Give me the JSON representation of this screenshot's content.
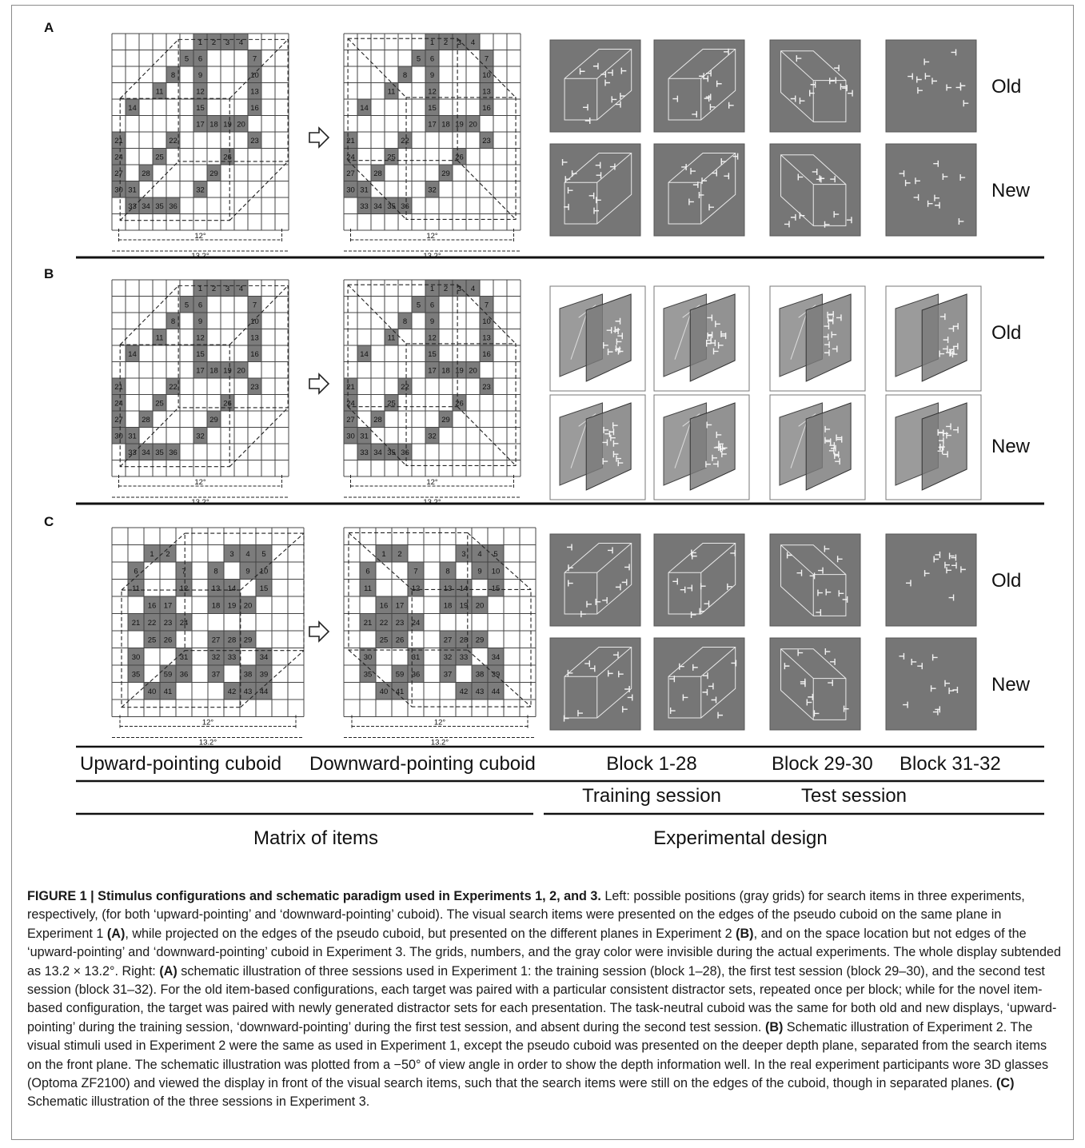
{
  "panels": [
    {
      "letter": "A",
      "exp": 1,
      "depth": false
    },
    {
      "letter": "B",
      "exp": 2,
      "depth": true
    },
    {
      "letter": "C",
      "exp": 3,
      "depth": false
    }
  ],
  "row_labels": [
    "Old",
    "New"
  ],
  "dim_inner": "12°",
  "dim_outer": "13.2°",
  "grid_numbers_exp12": [
    "1",
    "2",
    "3",
    "4",
    "5",
    "6",
    "7",
    "8",
    "9",
    "10",
    "11",
    "12",
    "13",
    "14",
    "15",
    "16",
    "17",
    "18",
    "19",
    "20",
    "21",
    "22",
    "23",
    "24",
    "25",
    "26",
    "27",
    "28",
    "29",
    "30",
    "31",
    "32",
    "33",
    "34",
    "35",
    "36"
  ],
  "grid_numbers_exp3": [
    "1",
    "2",
    "3",
    "4",
    "5",
    "6",
    "7",
    "8",
    "9",
    "10",
    "11",
    "12",
    "13",
    "14",
    "15",
    "16",
    "17",
    "18",
    "19",
    "20",
    "21",
    "22",
    "23",
    "24",
    "25",
    "26",
    "27",
    "28",
    "29",
    "30",
    "31",
    "32",
    "33",
    "34",
    "35",
    "36",
    "37",
    "38",
    "39",
    "40",
    "41",
    "42",
    "43",
    "44",
    "59"
  ],
  "bottom": {
    "col_up": "Upward-pointing cuboid",
    "col_down": "Downward-pointing cuboid",
    "block_train": "Block 1-28",
    "block_test1": "Block 29-30",
    "block_test2": "Block 31-32",
    "training": "Training session",
    "test": "Test session",
    "matrix": "Matrix of items",
    "design": "Experimental design"
  },
  "caption": {
    "title": "FIGURE 1 | Stimulus configurations and schematic paradigm used in Experiments 1, 2, and 3.",
    "t1": " Left: possible positions (gray grids) for search items in three experiments, respectively, (for both ‘upward-pointing’ and ‘downward-pointing’ cuboid). The visual search items were presented on the edges of the pseudo cuboid on the same plane in Experiment 1 ",
    "a1": "(A)",
    "t2": ", while projected on the edges of the pseudo cuboid, but presented on the different planes in Experiment 2 ",
    "b1": "(B)",
    "t3": ", and on the space location but not edges of the ‘upward-pointing’ and ‘downward-pointing’ cuboid in Experiment 3. The grids, numbers, and the gray color were invisible during the actual experiments. The whole display subtended as 13.2 × 13.2°. Right: ",
    "a2": "(A)",
    "t4": " schematic illustration of three sessions used in Experiment 1: the training session (block 1–28), the first test session (block 29–30), and the second test session (block 31–32). For the old item-based configurations, each target was paired with a particular consistent distractor sets, repeated once per block; while for the novel item-based configuration, the target was paired with newly generated distractor sets for each presentation. The task-neutral cuboid was the same for both old and new displays, ‘upward-pointing’ during the training session, ‘downward-pointing’ during the first test session, and absent during the second test session. ",
    "b2": "(B)",
    "t5": " Schematic illustration of Experiment 2. The visual stimuli used in Experiment 2 were the same as used in Experiment 1, except the pseudo cuboid was presented on the deeper depth plane, separated from the search items on the front plane. The schematic illustration was plotted from a −50° of view angle in order to show the depth information well. In the real experiment participants wore 3D glasses (Optoma ZF2100) and viewed the display in front of the visual search items, such that the search items were still on the edges of the cuboid, though in separated planes. ",
    "c1": "(C)",
    "t6": " Schematic illustration of the three sessions in Experiment 3."
  }
}
